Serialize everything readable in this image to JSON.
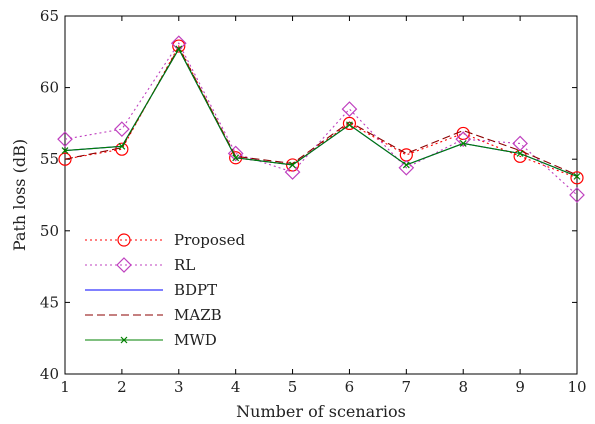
{
  "chart_data": {
    "type": "line",
    "title": "",
    "xlabel": "Number of scenarios",
    "ylabel": "Path loss (dB)",
    "x": [
      1,
      2,
      3,
      4,
      5,
      6,
      7,
      8,
      9,
      10
    ],
    "xlim": [
      1,
      10
    ],
    "ylim": [
      40,
      65
    ],
    "xticks": [
      "1",
      "2",
      "3",
      "4",
      "5",
      "6",
      "7",
      "8",
      "9",
      "10"
    ],
    "yticks": [
      "40",
      "45",
      "50",
      "55",
      "60",
      "65"
    ],
    "grid": false,
    "legend_position": "lower-left",
    "series": [
      {
        "name": "Proposed",
        "color": "#ff0000",
        "dash": "dotted",
        "marker": "circle",
        "values": [
          55.0,
          55.7,
          62.9,
          55.1,
          54.6,
          57.5,
          55.3,
          56.8,
          55.2,
          53.7
        ]
      },
      {
        "name": "RL",
        "color": "#bf40bf",
        "dash": "dotted",
        "marker": "diamond",
        "values": [
          56.4,
          57.1,
          63.1,
          55.4,
          54.1,
          58.5,
          54.4,
          56.4,
          56.1,
          52.5
        ]
      },
      {
        "name": "BDPT",
        "color": "#0000ff",
        "dash": "solid",
        "marker": "none",
        "values": [
          55.6,
          55.9,
          62.7,
          55.1,
          54.6,
          57.4,
          54.6,
          56.1,
          55.4,
          53.8
        ]
      },
      {
        "name": "MAZB",
        "color": "#8b0000",
        "dash": "dashed",
        "marker": "none",
        "values": [
          55.0,
          55.8,
          62.8,
          55.2,
          54.7,
          57.6,
          55.4,
          57.0,
          55.6,
          53.9
        ]
      },
      {
        "name": "MWD",
        "color": "#008000",
        "dash": "solid",
        "marker": "x",
        "values": [
          55.6,
          55.9,
          62.7,
          55.1,
          54.6,
          57.4,
          54.6,
          56.1,
          55.4,
          53.8
        ]
      }
    ]
  }
}
